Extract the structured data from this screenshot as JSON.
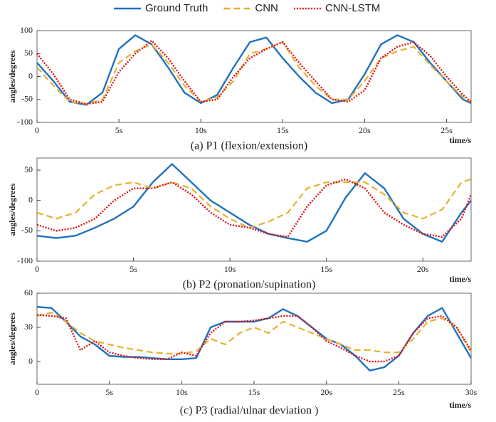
{
  "chart_data": [
    {
      "type": "line",
      "title": "(a) P1 (flexion/extension)",
      "xlabel": "time/s",
      "ylabel": "angles/degrees",
      "x": [
        0,
        1,
        2,
        3,
        4,
        5,
        6,
        7,
        8,
        9,
        10,
        11,
        12,
        13,
        14,
        15,
        16,
        17,
        18,
        19,
        20,
        21,
        22,
        23,
        24,
        25,
        26,
        26.5
      ],
      "xlim": [
        0,
        26.5
      ],
      "xticks": [
        0,
        {
          "value": 5,
          "label": "5s"
        },
        {
          "value": 10,
          "label": "10s"
        },
        {
          "value": 15,
          "label": "15s"
        },
        {
          "value": 20,
          "label": "20s"
        },
        {
          "value": 25,
          "label": "25s"
        }
      ],
      "ylim": [
        -100,
        100
      ],
      "yticks": [
        -100,
        -50,
        0,
        50,
        100
      ],
      "series": [
        {
          "name": "Ground Truth",
          "color": "#1f72c0",
          "style": "solid",
          "values": [
            30,
            -10,
            -55,
            -62,
            -35,
            60,
            90,
            70,
            20,
            -35,
            -58,
            -40,
            20,
            75,
            85,
            40,
            0,
            -35,
            -58,
            -50,
            5,
            70,
            90,
            75,
            30,
            -10,
            -50,
            -58
          ]
        },
        {
          "name": "CNN",
          "color": "#e8b030",
          "style": "dashed",
          "values": [
            20,
            -20,
            -55,
            -60,
            -50,
            30,
            55,
            70,
            30,
            -20,
            -55,
            -45,
            -10,
            50,
            60,
            75,
            20,
            -20,
            -50,
            -50,
            -10,
            40,
            55,
            65,
            25,
            -10,
            -45,
            -55
          ]
        },
        {
          "name": "CNN-LSTM",
          "color": "#e01010",
          "style": "dotted",
          "values": [
            50,
            5,
            -50,
            -60,
            -55,
            10,
            50,
            78,
            40,
            -10,
            -55,
            -50,
            0,
            40,
            60,
            75,
            30,
            -10,
            -50,
            -55,
            -30,
            40,
            65,
            75,
            45,
            0,
            -40,
            -55
          ]
        }
      ]
    },
    {
      "type": "line",
      "title": "(b) P2 (pronation/supination)",
      "xlabel": "time/s",
      "ylabel": "angles/degrees",
      "x": [
        0,
        1,
        2,
        3,
        4,
        5,
        6,
        7,
        8,
        9,
        10,
        11,
        12,
        13,
        14,
        15,
        16,
        17,
        18,
        19,
        20,
        21,
        22,
        22.5
      ],
      "xlim": [
        0,
        22.5
      ],
      "xticks": [
        0,
        {
          "value": 5,
          "label": "5s"
        },
        {
          "value": 10,
          "label": "10s"
        },
        {
          "value": 15,
          "label": "15s"
        },
        {
          "value": 20,
          "label": "20s"
        }
      ],
      "ylim": [
        -100,
        70
      ],
      "yticks": [
        -100,
        -50,
        0,
        50
      ],
      "series": [
        {
          "name": "Ground Truth",
          "color": "#1f72c0",
          "style": "solid",
          "values": [
            -58,
            -62,
            -58,
            -45,
            -30,
            -10,
            30,
            60,
            30,
            0,
            -20,
            -40,
            -55,
            -62,
            -68,
            -50,
            5,
            45,
            20,
            -30,
            -55,
            -68,
            -20,
            0
          ]
        },
        {
          "name": "CNN",
          "color": "#e8b030",
          "style": "dashed",
          "values": [
            -20,
            -30,
            -20,
            10,
            25,
            30,
            20,
            30,
            20,
            -10,
            -30,
            -45,
            -35,
            -20,
            20,
            30,
            30,
            30,
            10,
            -20,
            -30,
            -15,
            30,
            35
          ]
        },
        {
          "name": "CNN-LSTM",
          "color": "#e01010",
          "style": "dotted",
          "values": [
            -40,
            -50,
            -45,
            -30,
            0,
            20,
            20,
            30,
            10,
            -20,
            -40,
            -45,
            -55,
            -60,
            -10,
            25,
            35,
            20,
            -20,
            -40,
            -55,
            -60,
            -30,
            10
          ]
        }
      ]
    },
    {
      "type": "line",
      "title": "(c) P3 (radial/ulnar deviation )",
      "xlabel": "time/s",
      "ylabel": "angles/degrees",
      "x": [
        0,
        1,
        2,
        3,
        4,
        5,
        6,
        7,
        8,
        9,
        10,
        11,
        12,
        13,
        14,
        15,
        16,
        17,
        18,
        19,
        20,
        21,
        22,
        23,
        24,
        25,
        26,
        27,
        28,
        29,
        30
      ],
      "xlim": [
        0,
        30
      ],
      "xticks": [
        0,
        {
          "value": 5,
          "label": "5s"
        },
        {
          "value": 10,
          "label": "10s"
        },
        {
          "value": 15,
          "label": "15s"
        },
        {
          "value": 20,
          "label": "20s"
        },
        {
          "value": 25,
          "label": "25s"
        },
        {
          "value": 30,
          "label": "30s"
        }
      ],
      "ylim": [
        -20,
        60
      ],
      "yticks": [
        0,
        30,
        60
      ],
      "series": [
        {
          "name": "Ground Truth",
          "color": "#1f72c0",
          "style": "solid",
          "values": [
            48,
            47,
            35,
            22,
            15,
            5,
            4,
            4,
            3,
            2,
            2,
            3,
            30,
            35,
            35,
            35,
            38,
            46,
            40,
            30,
            20,
            15,
            5,
            -8,
            -5,
            5,
            25,
            40,
            47,
            25,
            3
          ]
        },
        {
          "name": "CNN",
          "color": "#e8b030",
          "style": "dashed",
          "values": [
            40,
            43,
            35,
            25,
            18,
            15,
            12,
            10,
            8,
            7,
            7,
            9,
            20,
            15,
            25,
            30,
            25,
            35,
            30,
            25,
            20,
            15,
            10,
            10,
            8,
            8,
            20,
            35,
            38,
            30,
            8
          ]
        },
        {
          "name": "CNN-LSTM",
          "color": "#e01010",
          "style": "dotted",
          "values": [
            41,
            40,
            38,
            10,
            18,
            8,
            5,
            3,
            2,
            2,
            8,
            5,
            25,
            35,
            35,
            36,
            38,
            40,
            40,
            30,
            18,
            12,
            5,
            0,
            0,
            5,
            25,
            38,
            40,
            30,
            10
          ]
        }
      ]
    }
  ]
}
